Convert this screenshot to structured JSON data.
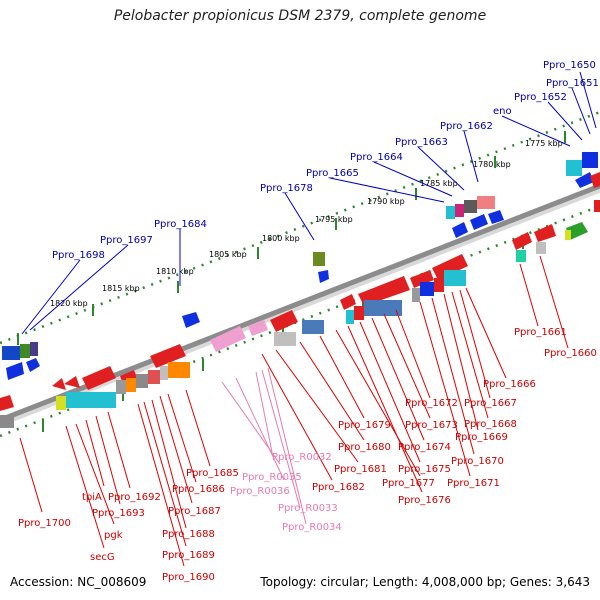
{
  "title": "Pelobacter propionicus DSM 2379, complete genome",
  "accession": "Accession: NC_008609",
  "summary": "Topology: circular; Length: 4,008,000 bp; Genes: 3,643",
  "colors": {
    "forward_label": "#0000aa",
    "reverse_label": "#cc0000",
    "rna_label": "#e87ab0",
    "backbone": "#8c8c8c",
    "tick": "#2a8a2a"
  },
  "kbp_ticks": [
    "1820 kbp",
    "1815 kbp",
    "1810 kbp",
    "1805 kbp",
    "1800 kbp",
    "1795 kbp",
    "1790 kbp",
    "1785 kbp",
    "1780 kbp",
    "1775 kbp"
  ],
  "top_labels": [
    "Ppro_1698",
    "Ppro_1697",
    "Ppro_1684",
    "Ppro_1678",
    "Ppro_1665",
    "Ppro_1664",
    "Ppro_1663",
    "Ppro_1662",
    "eno",
    "Ppro_1652",
    "Ppro_1651",
    "Ppro_1650"
  ],
  "bottom_labels": [
    "Ppro_1700",
    "secG",
    "pgk",
    "tpiA",
    "Ppro_1693",
    "Ppro_1692",
    "Ppro_1690",
    "Ppro_1689",
    "Ppro_1688",
    "Ppro_1687",
    "Ppro_1686",
    "Ppro_1685",
    "Ppro_1682",
    "Ppro_1681",
    "Ppro_1680",
    "Ppro_1679",
    "Ppro_1677",
    "Ppro_1676",
    "Ppro_1675",
    "Ppro_1674",
    "Ppro_1673",
    "Ppro_1672",
    "Ppro_1671",
    "Ppro_1670",
    "Ppro_1669",
    "Ppro_1668",
    "Ppro_1667",
    "Ppro_1666",
    "Ppro_1661",
    "Ppro_1660"
  ],
  "rna_labels": [
    "Ppro_R0032",
    "Ppro_R0035",
    "Ppro_R0036",
    "Ppro_R0033",
    "Ppro_R0034"
  ]
}
